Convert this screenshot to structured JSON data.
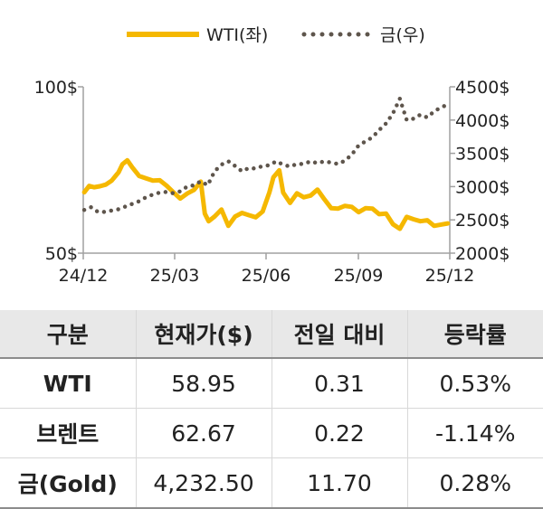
{
  "chart_data": {
    "type": "line",
    "legend": [
      "WTI(좌)",
      "금(우)"
    ],
    "legend_placement": "top-center",
    "x_ticks": [
      "24/12",
      "25/03",
      "25/06",
      "25/09",
      "25/12"
    ],
    "y_left": {
      "ticks": [
        "100$",
        "50$"
      ],
      "range": [
        50,
        100
      ]
    },
    "y_right": {
      "ticks": [
        "4500$",
        "4000$",
        "3500$",
        "3000$",
        "2500$",
        "2000$"
      ],
      "range": [
        2000,
        4500
      ]
    },
    "grid": false,
    "series": [
      {
        "name": "WTI(좌)",
        "axis": "left",
        "style": "solid",
        "color": "#f5b800",
        "dates": [
          "2024-12-02",
          "2024-12-07",
          "2024-12-12",
          "2024-12-18",
          "2024-12-24",
          "2024-12-30",
          "2025-01-06",
          "2025-01-10",
          "2025-01-15",
          "2025-01-20",
          "2025-01-27",
          "2025-02-03",
          "2025-02-10",
          "2025-02-17",
          "2025-02-24",
          "2025-03-03",
          "2025-03-10",
          "2025-03-17",
          "2025-03-24",
          "2025-03-31",
          "2025-04-04",
          "2025-04-08",
          "2025-04-14",
          "2025-04-21",
          "2025-04-28",
          "2025-05-05",
          "2025-05-12",
          "2025-05-19",
          "2025-05-26",
          "2025-06-02",
          "2025-06-09",
          "2025-06-13",
          "2025-06-19",
          "2025-06-23",
          "2025-06-30",
          "2025-07-07",
          "2025-07-14",
          "2025-07-21",
          "2025-07-28",
          "2025-08-04",
          "2025-08-11",
          "2025-08-18",
          "2025-08-25",
          "2025-09-01",
          "2025-09-08",
          "2025-09-15",
          "2025-09-22",
          "2025-09-29",
          "2025-10-06",
          "2025-10-13",
          "2025-10-20",
          "2025-10-27",
          "2025-11-03",
          "2025-11-10",
          "2025-11-17",
          "2025-11-24",
          "2025-12-01",
          "2025-12-08"
        ],
        "values": [
          68.3,
          70.2,
          69.8,
          70.1,
          70.6,
          71.8,
          74.3,
          76.7,
          77.9,
          75.8,
          73.2,
          72.5,
          71.8,
          71.9,
          70.3,
          68.3,
          66.4,
          67.9,
          69.0,
          71.5,
          61.9,
          59.6,
          61.0,
          63.1,
          58.2,
          61.0,
          62.1,
          61.4,
          60.8,
          62.5,
          68.3,
          72.8,
          74.9,
          68.2,
          65.1,
          68.0,
          66.8,
          67.3,
          69.1,
          66.2,
          63.5,
          63.4,
          64.2,
          63.9,
          62.3,
          63.5,
          63.4,
          61.7,
          61.9,
          58.7,
          57.3,
          60.9,
          60.2,
          59.6,
          59.9,
          58.2,
          58.6,
          58.95
        ]
      },
      {
        "name": "금(우)",
        "axis": "right",
        "style": "dotted",
        "color": "#5e554c",
        "dates": [
          "2024-12-02",
          "2024-12-09",
          "2024-12-16",
          "2024-12-23",
          "2024-12-30",
          "2025-01-06",
          "2025-01-13",
          "2025-01-20",
          "2025-01-27",
          "2025-02-03",
          "2025-02-10",
          "2025-02-17",
          "2025-02-24",
          "2025-03-03",
          "2025-03-10",
          "2025-03-17",
          "2025-03-24",
          "2025-03-31",
          "2025-04-07",
          "2025-04-14",
          "2025-04-21",
          "2025-04-28",
          "2025-05-05",
          "2025-05-12",
          "2025-05-19",
          "2025-05-26",
          "2025-06-02",
          "2025-06-09",
          "2025-06-16",
          "2025-06-23",
          "2025-06-30",
          "2025-07-07",
          "2025-07-14",
          "2025-07-21",
          "2025-07-28",
          "2025-08-04",
          "2025-08-11",
          "2025-08-18",
          "2025-08-25",
          "2025-09-01",
          "2025-09-08",
          "2025-09-15",
          "2025-09-22",
          "2025-09-29",
          "2025-10-06",
          "2025-10-13",
          "2025-10-20",
          "2025-10-27",
          "2025-11-03",
          "2025-11-10",
          "2025-11-17",
          "2025-11-24",
          "2025-12-01",
          "2025-12-08"
        ],
        "values": [
          2650,
          2690,
          2620,
          2620,
          2640,
          2660,
          2700,
          2740,
          2780,
          2840,
          2880,
          2910,
          2920,
          2900,
          2930,
          3000,
          3020,
          3080,
          3020,
          3230,
          3330,
          3380,
          3310,
          3230,
          3280,
          3270,
          3310,
          3320,
          3380,
          3330,
          3300,
          3340,
          3340,
          3380,
          3350,
          3380,
          3360,
          3340,
          3390,
          3480,
          3620,
          3680,
          3740,
          3850,
          3950,
          4100,
          4320,
          4000,
          4020,
          4080,
          4040,
          4130,
          4190,
          4232.5
        ]
      }
    ]
  },
  "table": {
    "headers": [
      "구분",
      "현재가($)",
      "전일 대비",
      "등락률"
    ],
    "rows": [
      [
        "WTI",
        "58.95",
        "0.31",
        "0.53%"
      ],
      [
        "브렌트",
        "62.67",
        "0.22",
        "-1.14%"
      ],
      [
        "금(Gold)",
        "4,232.50",
        "11.70",
        "0.28%"
      ]
    ]
  }
}
